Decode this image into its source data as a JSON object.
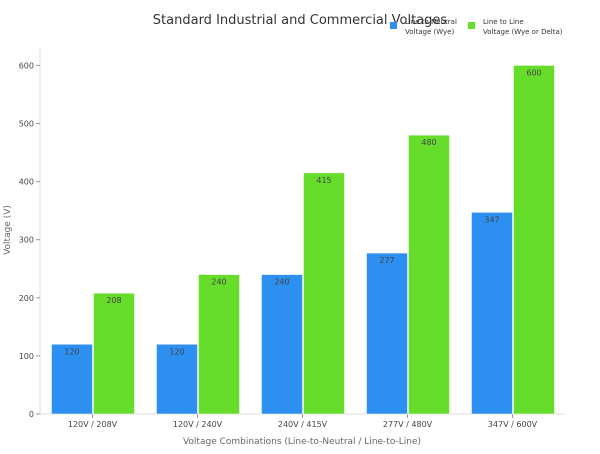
{
  "chart_data": {
    "type": "bar",
    "title": "Standard Industrial and Commercial Voltages",
    "xlabel": "Voltage Combinations (Line-to-Neutral / Line-to-Line)",
    "ylabel": "Voltage (V)",
    "ylim": [
      0,
      630
    ],
    "yticks": [
      0,
      100,
      200,
      300,
      400,
      500,
      600
    ],
    "grid": false,
    "legend_position": "top-right",
    "categories": [
      "120V / 208V",
      "120V / 240V",
      "240V / 415V",
      "277V / 480V",
      "347V / 600V"
    ],
    "series": [
      {
        "name": "Line to Neutral Voltage (Wye)",
        "legend_lines": [
          "Line to Neutral",
          "Voltage (Wye)"
        ],
        "color": "#2d8ff0",
        "values": [
          120,
          120,
          240,
          277,
          347
        ]
      },
      {
        "name": "Line to Line Voltage (Wye or Delta)",
        "legend_lines": [
          "Line to Line",
          "Voltage (Wye or Delta)"
        ],
        "color": "#66dd2a",
        "values": [
          208,
          240,
          415,
          480,
          600
        ]
      }
    ]
  }
}
